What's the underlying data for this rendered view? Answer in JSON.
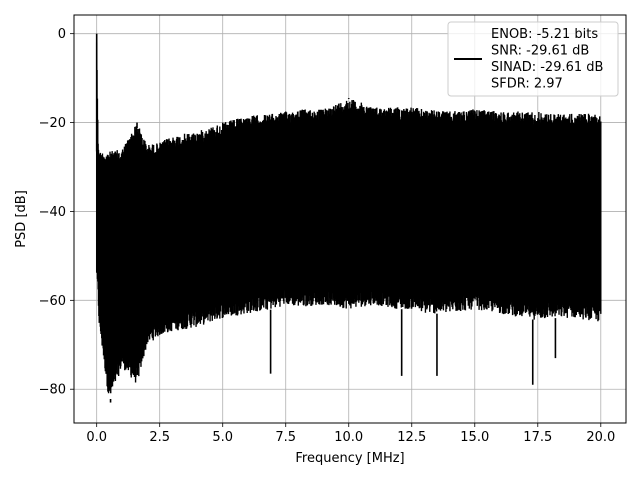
{
  "chart_data": {
    "type": "line",
    "title": "",
    "xlabel": "Frequency [MHz]",
    "ylabel": "PSD [dB]",
    "xlim": [
      -0.9,
      21.0
    ],
    "ylim": [
      -87.6,
      4.2
    ],
    "xticks": [
      0.0,
      2.5,
      5.0,
      7.5,
      10.0,
      12.5,
      15.0,
      17.5,
      20.0
    ],
    "xtick_labels": [
      "0.0",
      "2.5",
      "5.0",
      "7.5",
      "10.0",
      "12.5",
      "15.0",
      "17.5",
      "20.0"
    ],
    "yticks": [
      0,
      -20,
      -40,
      -60,
      -80
    ],
    "ytick_labels": [
      "0",
      "−20",
      "−40",
      "−60",
      "−80"
    ],
    "grid": true,
    "legend_position": "top-right",
    "legend_entries": [
      "ENOB: -5.21 bits",
      "SNR: -29.61 dB",
      "SINAD: -29.61 dB",
      "SFDR: 2.97"
    ],
    "series": [
      {
        "color": "#000000",
        "x_range": [
          0.0,
          20.0
        ],
        "x": [
          0.0,
          0.05,
          0.1,
          0.5,
          1.0,
          1.6,
          2.0,
          2.5,
          3.0,
          4.0,
          5.0,
          6.0,
          7.0,
          7.5,
          8.0,
          9.0,
          10.0,
          11.0,
          12.0,
          12.5,
          13.0,
          14.0,
          15.0,
          16.0,
          17.0,
          17.5,
          18.0,
          19.0,
          20.0
        ],
        "upper_envelope": [
          0.0,
          -22.0,
          -26.5,
          -26.5,
          -26.0,
          -20.0,
          -25.0,
          -24.5,
          -23.0,
          -22.0,
          -20.0,
          -18.5,
          -18.0,
          -17.5,
          -17.0,
          -17.0,
          -14.5,
          -16.5,
          -16.5,
          -16.5,
          -17.0,
          -17.5,
          -17.0,
          -17.5,
          -17.5,
          -17.5,
          -18.0,
          -18.0,
          -18.0
        ],
        "lower_envelope": [
          -55.0,
          -60.0,
          -66.0,
          -83.0,
          -75.0,
          -79.0,
          -70.0,
          -68.0,
          -67.0,
          -66.0,
          -64.0,
          -63.0,
          -62.0,
          -61.0,
          -61.5,
          -61.0,
          -62.0,
          -61.0,
          -62.0,
          -62.0,
          -63.0,
          -63.0,
          -62.0,
          -63.0,
          -64.0,
          -64.5,
          -64.0,
          -64.0,
          -65.0
        ],
        "dips": [
          {
            "x": 0.55,
            "y": -83.0
          },
          {
            "x": 1.6,
            "y": -79.0
          },
          {
            "x": 6.9,
            "y": -76.5
          },
          {
            "x": 12.1,
            "y": -77.0
          },
          {
            "x": 13.5,
            "y": -77.0
          },
          {
            "x": 17.3,
            "y": -79.0
          },
          {
            "x": 18.2,
            "y": -73.0
          }
        ],
        "peaks": [
          {
            "x": 0.0,
            "y": 0.0
          },
          {
            "x": 1.6,
            "y": -20.0
          },
          {
            "x": 10.0,
            "y": -14.5
          }
        ]
      }
    ]
  }
}
